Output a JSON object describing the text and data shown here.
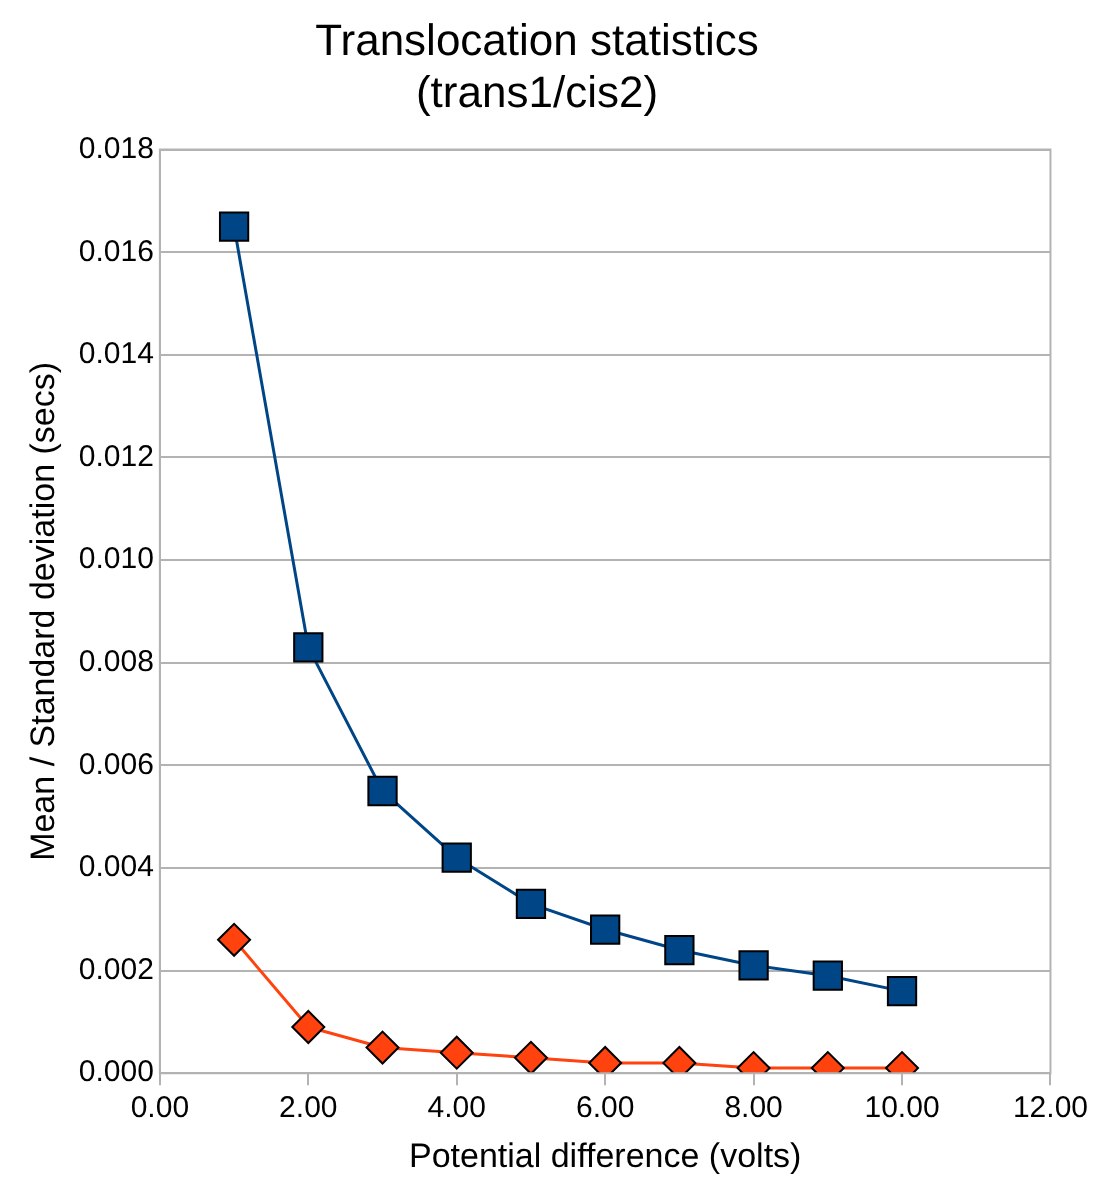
{
  "chart_data": {
    "type": "line",
    "title": [
      "Translocation statistics",
      "(trans1/cis2)"
    ],
    "xlabel": "Potential difference (volts)",
    "ylabel": "Mean / Standard deviation (secs)",
    "x": [
      1,
      2,
      3,
      4,
      5,
      6,
      7,
      8,
      9,
      10
    ],
    "series": [
      {
        "color": "#004586",
        "marker": "square",
        "values": [
          0.0165,
          0.0083,
          0.0055,
          0.0042,
          0.0033,
          0.0028,
          0.0024,
          0.0021,
          0.0019,
          0.0016
        ]
      },
      {
        "color": "#ff420e",
        "marker": "diamond",
        "values": [
          0.0026,
          0.0009,
          0.0005,
          0.0004,
          0.0003,
          0.0002,
          0.0002,
          0.0001,
          0.0001,
          0.0001
        ]
      }
    ],
    "xlim": [
      0,
      12
    ],
    "xticks": [
      {
        "value": 0,
        "label": "0.00"
      },
      {
        "value": 2,
        "label": "2.00"
      },
      {
        "value": 4,
        "label": "4.00"
      },
      {
        "value": 6,
        "label": "6.00"
      },
      {
        "value": 8,
        "label": "8.00"
      },
      {
        "value": 10,
        "label": "10.00"
      },
      {
        "value": 12,
        "label": "12.00"
      }
    ],
    "ylim": [
      0,
      0.018
    ],
    "yticks": [
      {
        "value": 0,
        "label": "0.000"
      },
      {
        "value": 0.002,
        "label": "0.002"
      },
      {
        "value": 0.004,
        "label": "0.004"
      },
      {
        "value": 0.006,
        "label": "0.006"
      },
      {
        "value": 0.008,
        "label": "0.008"
      },
      {
        "value": 0.01,
        "label": "0.010"
      },
      {
        "value": 0.012,
        "label": "0.012"
      },
      {
        "value": 0.014,
        "label": "0.014"
      },
      {
        "value": 0.016,
        "label": "0.016"
      },
      {
        "value": 0.018,
        "label": "0.018"
      }
    ],
    "grid": "y",
    "legend": false,
    "line_style": "solid"
  }
}
